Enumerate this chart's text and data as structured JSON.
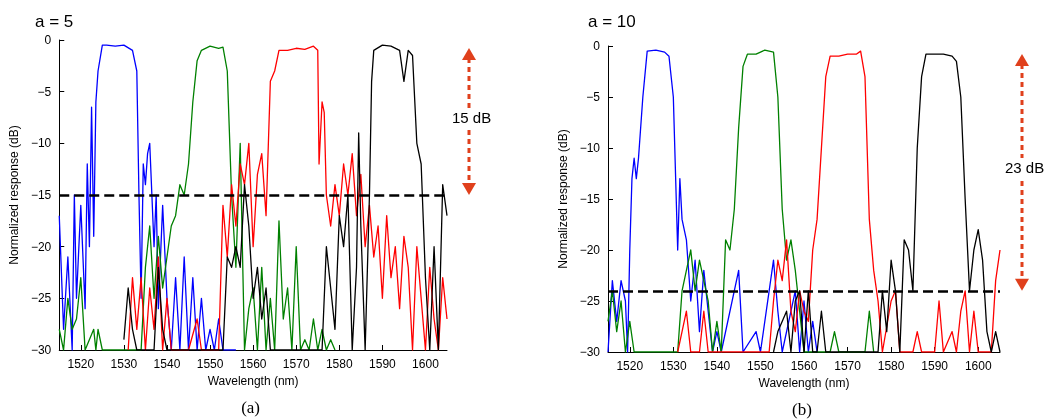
{
  "chart_data": [
    {
      "type": "line",
      "title": "a = 5",
      "xlabel": "Wavelength (nm)",
      "ylabel": "Normalized response (dB)",
      "xlim": [
        1515,
        1605
      ],
      "ylim": [
        -30,
        0
      ],
      "xticks": [
        1520,
        1530,
        1540,
        1550,
        1560,
        1570,
        1580,
        1590,
        1600
      ],
      "yticks": [
        -30,
        -25,
        -20,
        -15,
        -10,
        -5,
        0
      ],
      "marker": "none",
      "annotations": [
        "15 dB",
        "(a)"
      ],
      "ref_lines": [
        {
          "axis": "y",
          "value": -15,
          "color": "#000000",
          "line_style": "dashed"
        }
      ],
      "series": [
        {
          "color": "#0000ff",
          "x": [
            1515,
            1516,
            1517,
            1518,
            1518.5,
            1519,
            1520,
            1521,
            1521.5,
            1522,
            1522.5,
            1523,
            1523.5,
            1524,
            1525,
            1526,
            1528,
            1530,
            1532,
            1533,
            1533.5,
            1534,
            1534.5,
            1535,
            1535.5,
            1536,
            1537,
            1537.5,
            1538,
            1539,
            1540,
            1541,
            1542,
            1543,
            1544,
            1545,
            1546,
            1547,
            1548,
            1549,
            1550,
            1551,
            1552,
            1553,
            1556
          ],
          "values": [
            -17,
            -28,
            -21,
            -30,
            -15,
            -25,
            -16,
            -26,
            -12,
            -20,
            -6.5,
            -19,
            -6,
            -3,
            -0.5,
            -0.5,
            -0.6,
            -0.5,
            -1,
            -3,
            -15,
            -25,
            -12,
            -14,
            -11,
            -10,
            -20,
            -15,
            -26,
            -16,
            -25,
            -30,
            -23,
            -30,
            -21,
            -30,
            -23,
            -30,
            -25,
            -30,
            -28,
            -30,
            -27,
            -30,
            -30
          ]
        },
        {
          "color": "#008000",
          "x": [
            1515,
            1516,
            1517,
            1518,
            1519,
            1520,
            1521,
            1523,
            1523.5,
            1524,
            1525,
            1534,
            1535,
            1536,
            1537,
            1538,
            1539,
            1540,
            1541,
            1542,
            1543,
            1544,
            1545,
            1546,
            1547,
            1548,
            1550,
            1552,
            1553,
            1554,
            1555,
            1556,
            1557,
            1558,
            1559,
            1560,
            1561,
            1562,
            1563,
            1564,
            1565,
            1566,
            1567,
            1568,
            1569,
            1570,
            1571,
            1572,
            1573,
            1574,
            1575,
            1576,
            1577,
            1578,
            1579
          ],
          "values": [
            -28,
            -30,
            -25,
            -28,
            -27,
            -23,
            -30,
            -28,
            -30,
            -28,
            -30,
            -30,
            -22,
            -18,
            -25,
            -19,
            -24,
            -21,
            -18,
            -17,
            -14,
            -15,
            -12,
            -6,
            -2,
            -1,
            -0.6,
            -0.8,
            -0.7,
            -3,
            -15,
            -22,
            -10,
            -30,
            -26,
            -24,
            -30,
            -22,
            -30,
            -25,
            -30,
            -17.5,
            -27,
            -24,
            -30,
            -20,
            -30,
            -29,
            -30,
            -27,
            -30,
            -28,
            -30,
            -29,
            -30
          ]
        },
        {
          "color": "#ff0000",
          "x": [
            1531,
            1532,
            1533,
            1534,
            1535,
            1536,
            1537,
            1538,
            1539,
            1540,
            1541,
            1545,
            1547,
            1548,
            1552,
            1553,
            1554,
            1555,
            1556,
            1557,
            1558,
            1559,
            1560,
            1561,
            1562,
            1563,
            1564,
            1565,
            1566,
            1568,
            1570,
            1572,
            1574,
            1575,
            1575.3,
            1576,
            1576.5,
            1577,
            1578,
            1579,
            1580,
            1581,
            1582,
            1583,
            1584,
            1585,
            1586,
            1587,
            1588,
            1589,
            1590,
            1591,
            1592,
            1593,
            1594,
            1595,
            1596,
            1597,
            1598,
            1599,
            1600,
            1601,
            1602,
            1603,
            1604,
            1605
          ],
          "values": [
            -30,
            -23,
            -28,
            -23,
            -30,
            -24,
            -28,
            -21,
            -30,
            -25,
            -30,
            -30,
            -27,
            -30,
            -30,
            -16,
            -21,
            -14,
            -18,
            -12,
            -14,
            -10,
            -20,
            -13,
            -11,
            -17,
            -4,
            -3,
            -1,
            -1,
            -0.8,
            -0.9,
            -0.6,
            -1,
            -12,
            -6,
            -7,
            -15,
            -18,
            -14,
            -17,
            -12,
            -15,
            -11,
            -17,
            -13,
            -20,
            -16,
            -21,
            -18,
            -25,
            -17,
            -23,
            -20,
            -26,
            -19,
            -22,
            -30,
            -20,
            -25,
            -30,
            -22,
            -27,
            -30,
            -23,
            -27
          ]
        },
        {
          "color": "#000000",
          "x": [
            1530,
            1531,
            1532,
            1533,
            1537,
            1538,
            1539,
            1540,
            1553,
            1554,
            1555,
            1556,
            1557,
            1558,
            1559,
            1560,
            1561,
            1562,
            1563,
            1564,
            1576,
            1577,
            1578,
            1579,
            1580,
            1581,
            1582,
            1583,
            1584,
            1584.5,
            1585,
            1586,
            1587,
            1587.5,
            1588,
            1590,
            1592,
            1594,
            1595,
            1596,
            1597,
            1598,
            1599,
            1600,
            1601,
            1602,
            1603,
            1604,
            1605
          ],
          "values": [
            -29,
            -24,
            -28,
            -30,
            -30,
            -22,
            -28,
            -30,
            -30,
            -21,
            -22,
            -20,
            -22,
            -14,
            -18,
            -25,
            -22,
            -27,
            -24,
            -30,
            -30,
            -20,
            -24,
            -28,
            -17,
            -20,
            -15,
            -30,
            -22,
            -9,
            -18,
            -30,
            -15,
            -4,
            -1,
            -0.5,
            -0.6,
            -1,
            -4,
            -1,
            -1.5,
            -10,
            -12,
            -23,
            -30,
            -20,
            -30,
            -14,
            -17
          ]
        }
      ]
    },
    {
      "type": "line",
      "title": "a = 10",
      "xlabel": "Wavelength (nm)",
      "ylabel": "Normalized response (dB)",
      "xlim": [
        1515,
        1605
      ],
      "ylim": [
        -30,
        0
      ],
      "xticks": [
        1520,
        1530,
        1540,
        1550,
        1560,
        1570,
        1580,
        1590,
        1600
      ],
      "yticks": [
        -30,
        -25,
        -20,
        -15,
        -10,
        -5,
        0
      ],
      "marker": "none",
      "annotations": [
        "23 dB",
        "(b)"
      ],
      "ref_lines": [
        {
          "axis": "y",
          "value": -24,
          "color": "#000000",
          "line_style": "dashed"
        }
      ],
      "series": [
        {
          "color": "#0000ff",
          "x": [
            1515,
            1516,
            1517,
            1518,
            1519,
            1519.5,
            1520,
            1520.5,
            1521,
            1521.5,
            1522,
            1523,
            1524,
            1526,
            1528,
            1529,
            1530,
            1531,
            1531.5,
            1532,
            1533,
            1534,
            1535,
            1536,
            1537,
            1538,
            1539,
            1540,
            1541,
            1545,
            1546,
            1549,
            1550,
            1553,
            1554,
            1555,
            1558,
            1559,
            1560,
            1561,
            1562,
            1563
          ],
          "values": [
            -30,
            -23,
            -27,
            -23,
            -25,
            -30,
            -20,
            -13,
            -11,
            -13,
            -11,
            -5,
            -0.5,
            -0.4,
            -0.6,
            -1,
            -5,
            -20,
            -13,
            -17,
            -19,
            -25,
            -21,
            -28,
            -22,
            -26,
            -30,
            -28,
            -30,
            -22,
            -30,
            -28,
            -30,
            -21,
            -26,
            -30,
            -24,
            -30,
            -25,
            -30,
            -27,
            -30
          ]
        },
        {
          "color": "#008000",
          "x": [
            1515,
            1516,
            1517,
            1518,
            1519,
            1520,
            1521,
            1531,
            1532,
            1533,
            1534,
            1535,
            1536,
            1537,
            1538,
            1539,
            1540,
            1541,
            1542,
            1543,
            1544,
            1545,
            1546,
            1547,
            1549,
            1551,
            1553,
            1554,
            1555,
            1556,
            1557,
            1558,
            1559,
            1560,
            1566,
            1567,
            1568,
            1574,
            1575,
            1576
          ],
          "values": [
            -27,
            -24,
            -28,
            -25,
            -30,
            -27,
            -30,
            -30,
            -24,
            -22,
            -20,
            -24,
            -21,
            -23,
            -25,
            -30,
            -27,
            -30,
            -19,
            -20,
            -16,
            -8,
            -2,
            -0.8,
            -0.8,
            -0.4,
            -0.6,
            -5,
            -16,
            -21,
            -19,
            -22,
            -26,
            -30,
            -30,
            -28,
            -30,
            -30,
            -26,
            -30
          ]
        },
        {
          "color": "#ff0000",
          "x": [
            1531,
            1532,
            1533,
            1534,
            1536,
            1537,
            1538,
            1552,
            1553,
            1554,
            1555,
            1556,
            1557,
            1558,
            1559,
            1560,
            1561,
            1562,
            1563,
            1564,
            1565,
            1566,
            1568,
            1570,
            1572,
            1573,
            1574,
            1575,
            1576,
            1577,
            1578,
            1580,
            1581,
            1582,
            1585,
            1586,
            1587,
            1590,
            1591,
            1592,
            1594,
            1595,
            1596,
            1597,
            1598,
            1599,
            1600,
            1603,
            1604,
            1605
          ],
          "values": [
            -30,
            -28,
            -26,
            -30,
            -30,
            -26,
            -30,
            -30,
            -25,
            -21,
            -23,
            -19,
            -26,
            -28,
            -24,
            -26,
            -27,
            -20,
            -17,
            -10,
            -3,
            -1,
            -1,
            -0.8,
            -0.8,
            -0.5,
            -3,
            -17,
            -22,
            -25,
            -30,
            -25,
            -24,
            -30,
            -30,
            -28,
            -30,
            -30,
            -25,
            -30,
            -28,
            -30,
            -26,
            -24,
            -30,
            -26,
            -30,
            -30,
            -23,
            -20
          ]
        },
        {
          "color": "#000000",
          "x": [
            1553,
            1554,
            1556,
            1557,
            1558,
            1559,
            1560,
            1561,
            1562,
            1563,
            1564,
            1565,
            1577,
            1578,
            1579,
            1580,
            1581,
            1582,
            1583,
            1584,
            1585,
            1586,
            1587,
            1588,
            1590,
            1592,
            1594,
            1595,
            1596,
            1597,
            1598,
            1599,
            1600,
            1601,
            1602,
            1603,
            1604,
            1605
          ],
          "values": [
            -30,
            -28,
            -26,
            -30,
            -25,
            -24,
            -30,
            -24,
            -30,
            -30,
            -26,
            -30,
            -30,
            -24,
            -28,
            -21,
            -24,
            -30,
            -19,
            -20,
            -24,
            -10,
            -3,
            -0.8,
            -0.8,
            -0.8,
            -1,
            -1.5,
            -5,
            -15,
            -24,
            -20,
            -18,
            -21,
            -28,
            -30,
            -28,
            -30
          ]
        }
      ]
    }
  ]
}
